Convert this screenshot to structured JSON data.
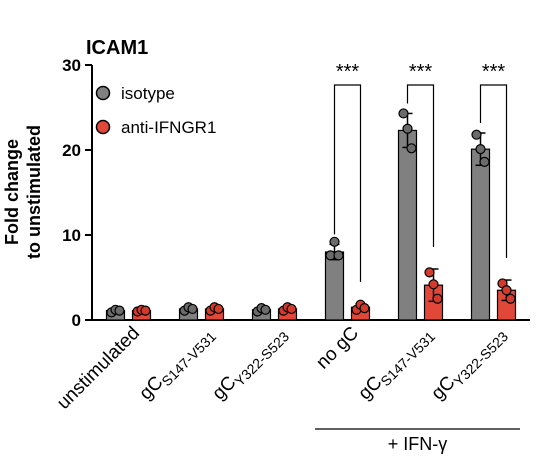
{
  "chart_data": {
    "type": "bar",
    "title": "ICAM1",
    "y_label": [
      "Fold change",
      "to unstimulated"
    ],
    "categories": [
      "unstimulated",
      "gC",
      "gC",
      "no gC",
      "gC",
      "gC"
    ],
    "category_subscripts": [
      null,
      "S147-V531",
      "Y322-S523",
      null,
      "S147-V531",
      "Y322-S523"
    ],
    "series": [
      {
        "name": "isotype",
        "color": "#808080",
        "point_color": "#6b6b6b",
        "values": [
          1.1,
          1.3,
          1.2,
          8.0,
          22.3,
          20.1
        ],
        "errors": [
          0.2,
          0.3,
          0.3,
          0.9,
          2.0,
          1.9
        ],
        "points": [
          [
            0.9,
            1.2,
            1.1
          ],
          [
            1.1,
            1.5,
            1.3
          ],
          [
            1.0,
            1.4,
            1.2
          ],
          [
            7.6,
            9.2,
            7.6
          ],
          [
            24.3,
            22.5,
            20.2
          ],
          [
            21.8,
            20.1,
            18.6
          ]
        ]
      },
      {
        "name": "anti-IFNGR1",
        "color": "#e2483a",
        "point_color": "#d23a2c",
        "values": [
          1.1,
          1.3,
          1.3,
          1.5,
          4.1,
          3.5
        ],
        "errors": [
          0.2,
          0.3,
          0.3,
          0.4,
          1.9,
          1.2
        ],
        "points": [
          [
            1.0,
            1.2,
            1.1
          ],
          [
            1.1,
            1.5,
            1.3
          ],
          [
            1.1,
            1.5,
            1.3
          ],
          [
            1.2,
            1.8,
            1.4
          ],
          [
            5.6,
            4.2,
            2.5
          ],
          [
            4.3,
            3.5,
            2.5
          ]
        ]
      }
    ],
    "significance_labels": [
      null,
      null,
      null,
      "***",
      "***",
      "***"
    ],
    "group_label": "+ IFN-γ",
    "ylim": [
      0,
      30
    ],
    "yticks": [
      0,
      10,
      20,
      30
    ]
  }
}
